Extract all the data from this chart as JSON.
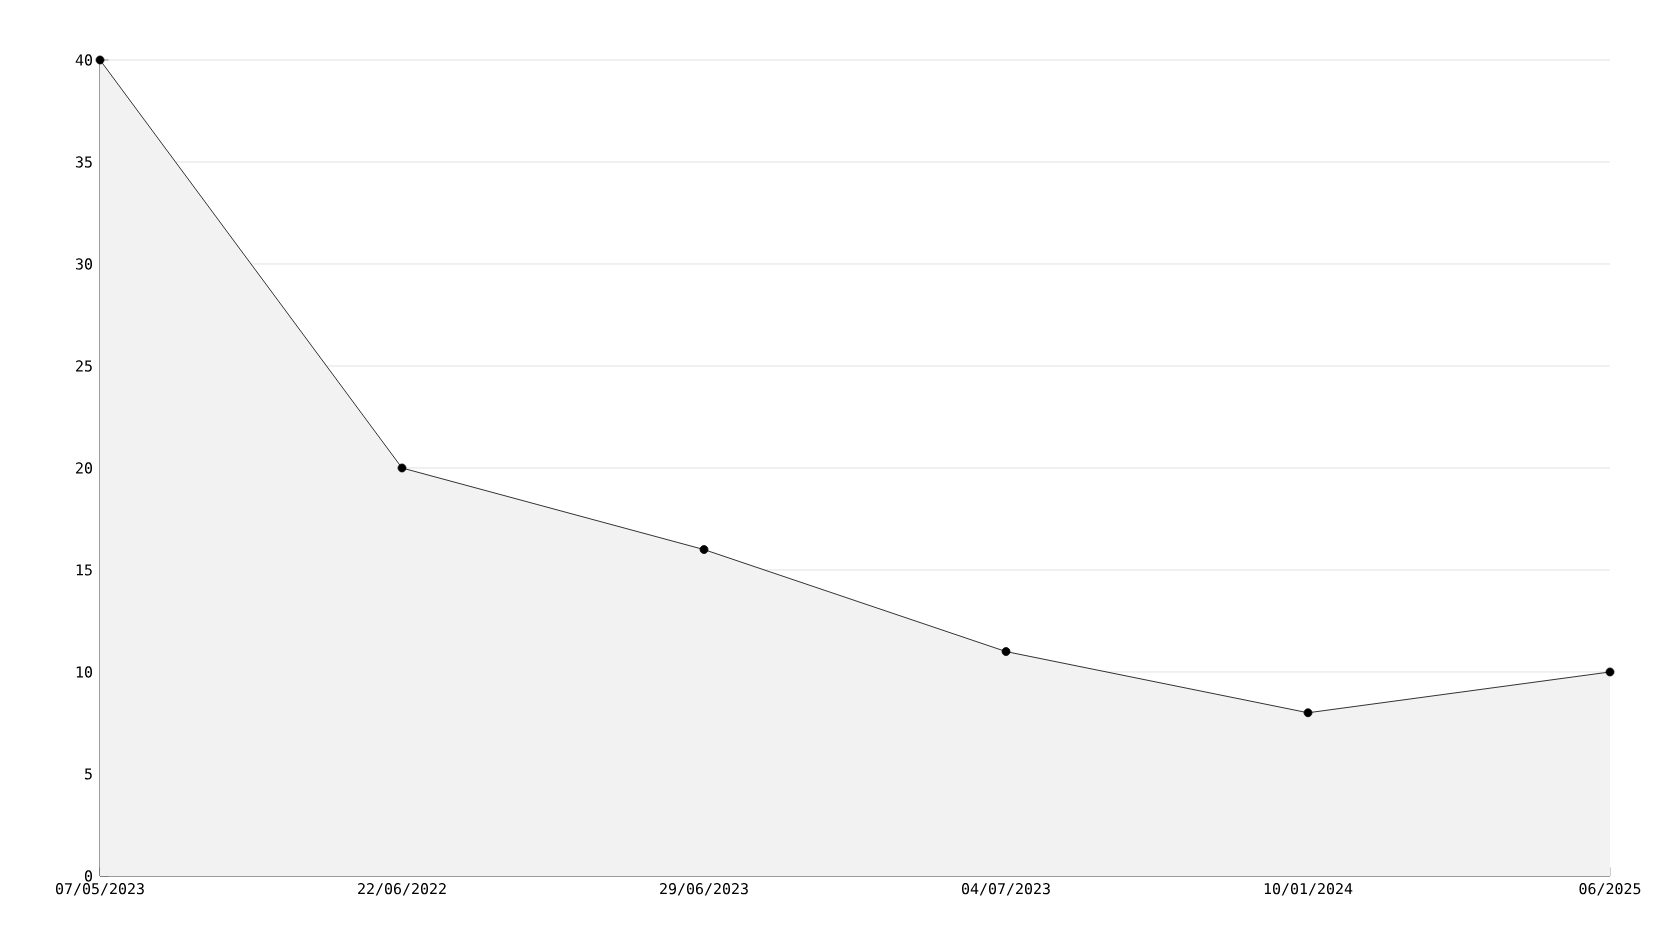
{
  "chart_data": {
    "type": "area",
    "categories": [
      "07/05/2023",
      "22/06/2022",
      "29/06/2023",
      "04/07/2023",
      "10/01/2024",
      "06/2025"
    ],
    "series": [
      {
        "color": "#000000",
        "values": [
          40,
          20,
          16,
          11,
          8,
          10
        ]
      }
    ],
    "ylim": [
      0,
      40
    ],
    "yticks": [
      0,
      5,
      10,
      15,
      20,
      25,
      30,
      35,
      40
    ],
    "grid": "y",
    "marker": "circle",
    "line_style": "solid"
  }
}
